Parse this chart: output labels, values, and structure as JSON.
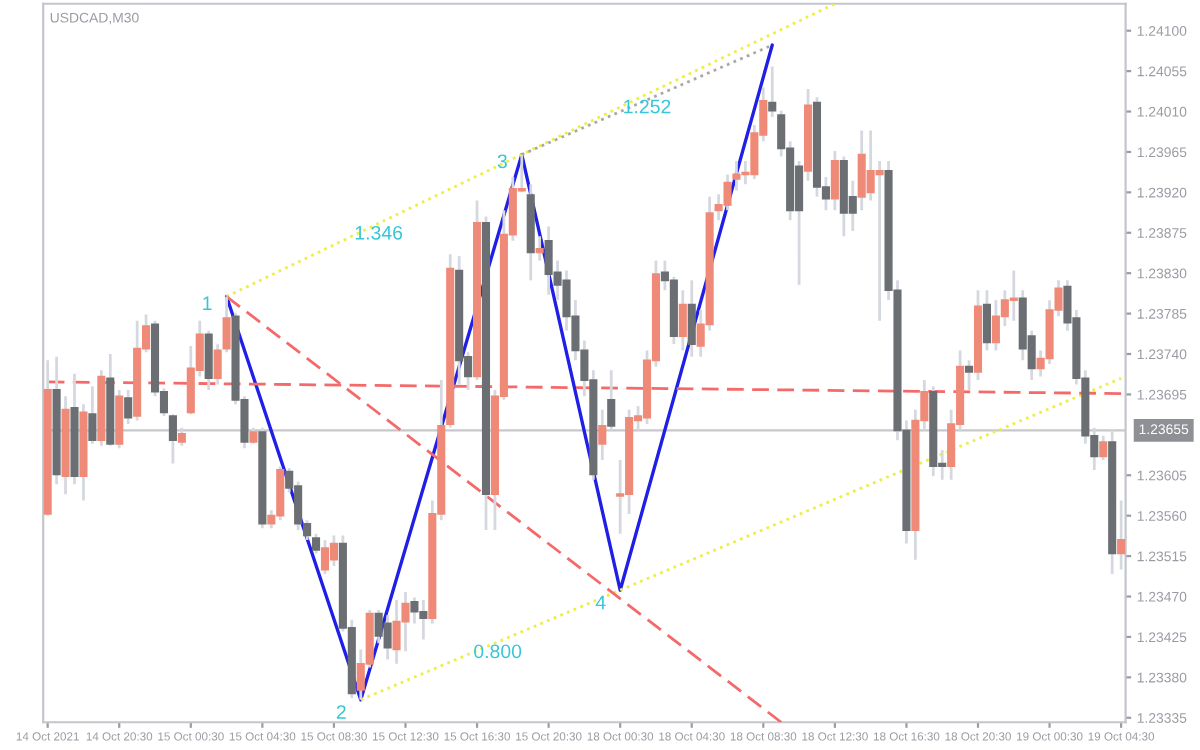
{
  "chart_data": {
    "type": "candlestick",
    "title": "USDCAD,M30",
    "categories": [
      "14 Oct 2021",
      null,
      null,
      null,
      null,
      null,
      null,
      null,
      "14 Oct 20:30",
      null,
      null,
      null,
      null,
      null,
      null,
      null,
      "15 Oct 00:30",
      null,
      null,
      null,
      null,
      null,
      null,
      null,
      "15 Oct 04:30",
      null,
      null,
      null,
      null,
      null,
      null,
      null,
      "15 Oct 08:30",
      null,
      null,
      null,
      null,
      null,
      null,
      null,
      "15 Oct 12:30",
      null,
      null,
      null,
      null,
      null,
      null,
      null,
      "15 Oct 16:30",
      null,
      null,
      null,
      null,
      null,
      null,
      null,
      "15 Oct 20:30",
      null,
      null,
      null,
      null,
      null,
      null,
      null,
      "18 Oct 00:30",
      null,
      null,
      null,
      null,
      null,
      null,
      null,
      "18 Oct 04:30",
      null,
      null,
      null,
      null,
      null,
      null,
      null,
      "18 Oct 08:30",
      null,
      null,
      null,
      null,
      null,
      null,
      null,
      "18 Oct 12:30",
      null,
      null,
      null,
      null,
      null,
      null,
      null,
      "18 Oct 16:30",
      null,
      null,
      null,
      null,
      null,
      null,
      null,
      "18 Oct 20:30",
      null,
      null,
      null,
      null,
      null,
      null,
      null,
      "19 Oct 00:30",
      null,
      null,
      null,
      null,
      null,
      null,
      null,
      "19 Oct 04:30"
    ],
    "ohlc": [
      [
        1.23562,
        1.23733,
        1.2356,
        1.237
      ],
      [
        1.237,
        1.23737,
        1.23595,
        1.23606
      ],
      [
        1.23604,
        1.23693,
        1.23584,
        1.23678
      ],
      [
        1.2368,
        1.23718,
        1.23595,
        1.23604
      ],
      [
        1.23604,
        1.23684,
        1.23577,
        1.23675
      ],
      [
        1.23673,
        1.23704,
        1.2364,
        1.23644
      ],
      [
        1.23644,
        1.23722,
        1.23638,
        1.23715
      ],
      [
        1.23713,
        1.2374,
        1.23638,
        1.2364
      ],
      [
        1.2364,
        1.237,
        1.23635,
        1.23693
      ],
      [
        1.23691,
        1.237,
        1.23662,
        1.23669
      ],
      [
        1.23671,
        1.23777,
        1.23666,
        1.23746
      ],
      [
        1.23746,
        1.23784,
        1.23742,
        1.23771
      ],
      [
        1.23773,
        1.23777,
        1.23693,
        1.23698
      ],
      [
        1.23698,
        1.23702,
        1.23671,
        1.23675
      ],
      [
        1.23671,
        1.23673,
        1.23618,
        1.23644
      ],
      [
        1.23642,
        1.23658,
        1.23638,
        1.23651
      ],
      [
        1.23675,
        1.23749,
        1.23673,
        1.23724
      ],
      [
        1.23722,
        1.23777,
        1.23715,
        1.23762
      ],
      [
        1.23762,
        1.23766,
        1.237,
        1.23713
      ],
      [
        1.23713,
        1.23751,
        1.23706,
        1.23744
      ],
      [
        1.23746,
        1.23804,
        1.23742,
        1.2378
      ],
      [
        1.23782,
        1.23786,
        1.23684,
        1.23689
      ],
      [
        1.23689,
        1.23693,
        1.23635,
        1.23642
      ],
      [
        1.23642,
        1.23658,
        1.2364,
        1.23653
      ],
      [
        1.23653,
        1.23658,
        1.23546,
        1.23551
      ],
      [
        1.23551,
        1.23566,
        1.23546,
        1.2356
      ],
      [
        1.2356,
        1.23615,
        1.23555,
        1.23611
      ],
      [
        1.23609,
        1.23613,
        1.23586,
        1.23591
      ],
      [
        1.23593,
        1.23598,
        1.23544,
        1.23551
      ],
      [
        1.23551,
        1.23555,
        1.23533,
        1.23538
      ],
      [
        1.23535,
        1.2354,
        1.23518,
        1.23522
      ],
      [
        1.235,
        1.23533,
        1.23495,
        1.23524
      ],
      [
        1.23511,
        1.23538,
        1.23504,
        1.23529
      ],
      [
        1.23529,
        1.23538,
        1.23431,
        1.23435
      ],
      [
        1.23435,
        1.23444,
        1.23357,
        1.23362
      ],
      [
        1.23366,
        1.23411,
        1.23355,
        1.23395
      ],
      [
        1.23395,
        1.23455,
        1.23391,
        1.23451
      ],
      [
        1.23451,
        1.23455,
        1.23418,
        1.23426
      ],
      [
        1.2344,
        1.23449,
        1.234,
        1.23413
      ],
      [
        1.23411,
        1.23466,
        1.23395,
        1.23442
      ],
      [
        1.23442,
        1.23475,
        1.23409,
        1.23462
      ],
      [
        1.23464,
        1.23469,
        1.2344,
        1.23453
      ],
      [
        1.23453,
        1.23466,
        1.23422,
        1.23446
      ],
      [
        1.23446,
        1.23577,
        1.2344,
        1.23562
      ],
      [
        1.23562,
        1.23711,
        1.23555,
        1.2366
      ],
      [
        1.23662,
        1.23851,
        1.23658,
        1.23835
      ],
      [
        1.23833,
        1.23849,
        1.23706,
        1.23733
      ],
      [
        1.23737,
        1.23742,
        1.237,
        1.23715
      ],
      [
        1.23715,
        1.23911,
        1.23711,
        1.23886
      ],
      [
        1.23886,
        1.23893,
        1.23544,
        1.23584
      ],
      [
        1.23584,
        1.237,
        1.23544,
        1.23693
      ],
      [
        1.23693,
        1.239,
        1.23689,
        1.23873
      ],
      [
        1.23873,
        1.23937,
        1.23866,
        1.23924
      ],
      [
        1.23922,
        1.23962,
        1.2392,
        1.23924
      ],
      [
        1.23917,
        1.23929,
        1.23822,
        1.23853
      ],
      [
        1.23853,
        1.23871,
        1.23844,
        1.23857
      ],
      [
        1.23866,
        1.23882,
        1.23806,
        1.23829
      ],
      [
        1.23831,
        1.23844,
        1.238,
        1.23817
      ],
      [
        1.23822,
        1.23833,
        1.23766,
        1.23782
      ],
      [
        1.23782,
        1.238,
        1.23733,
        1.23744
      ],
      [
        1.23744,
        1.23755,
        1.23693,
        1.23711
      ],
      [
        1.23711,
        1.23722,
        1.236,
        1.23606
      ],
      [
        1.2364,
        1.23678,
        1.23622,
        1.2366
      ],
      [
        1.23689,
        1.23722,
        1.23655,
        1.2366
      ],
      [
        1.23582,
        1.23622,
        1.2354,
        1.23584
      ],
      [
        1.23584,
        1.23678,
        1.23562,
        1.23669
      ],
      [
        1.23666,
        1.23682,
        1.23655,
        1.23671
      ],
      [
        1.23669,
        1.23744,
        1.23662,
        1.23733
      ],
      [
        1.23733,
        1.23844,
        1.23726,
        1.23829
      ],
      [
        1.23831,
        1.23844,
        1.23811,
        1.23822
      ],
      [
        1.23822,
        1.23826,
        1.23751,
        1.2376
      ],
      [
        1.2376,
        1.23811,
        1.23744,
        1.23795
      ],
      [
        1.23795,
        1.23822,
        1.23737,
        1.23751
      ],
      [
        1.23749,
        1.23789,
        1.23737,
        1.23773
      ],
      [
        1.23773,
        1.23915,
        1.23766,
        1.23897
      ],
      [
        1.239,
        1.23918,
        1.23889,
        1.23906
      ],
      [
        1.23906,
        1.2394,
        1.239,
        1.23931
      ],
      [
        1.23935,
        1.23955,
        1.23922,
        1.2394
      ],
      [
        1.2394,
        1.23955,
        1.23929,
        1.23942
      ],
      [
        1.2394,
        1.23995,
        1.23935,
        1.23986
      ],
      [
        1.23984,
        1.24037,
        1.23977,
        1.24022
      ],
      [
        1.2402,
        1.2406,
        1.24004,
        1.24011
      ],
      [
        1.24006,
        1.24011,
        1.2396,
        1.23969
      ],
      [
        1.23969,
        1.23977,
        1.23889,
        1.239
      ],
      [
        1.23949,
        1.23955,
        1.23817,
        1.239
      ],
      [
        1.23944,
        1.24035,
        1.23933,
        1.24017
      ],
      [
        1.2402,
        1.24026,
        1.23915,
        1.23926
      ],
      [
        1.23926,
        1.23937,
        1.239,
        1.23913
      ],
      [
        1.23913,
        1.23966,
        1.239,
        1.23955
      ],
      [
        1.23955,
        1.2396,
        1.23871,
        1.23897
      ],
      [
        1.23915,
        1.23933,
        1.23877,
        1.23897
      ],
      [
        1.23915,
        1.23989,
        1.239,
        1.23962
      ],
      [
        1.2392,
        1.23989,
        1.23911,
        1.23944
      ],
      [
        1.2394,
        1.23955,
        1.23777,
        1.23944
      ],
      [
        1.23944,
        1.23955,
        1.238,
        1.23811
      ],
      [
        1.23811,
        1.23822,
        1.23644,
        1.23655
      ],
      [
        1.23655,
        1.23666,
        1.23529,
        1.23544
      ],
      [
        1.23544,
        1.23678,
        1.23511,
        1.23666
      ],
      [
        1.23666,
        1.23711,
        1.23655,
        1.23698
      ],
      [
        1.23698,
        1.23704,
        1.23604,
        1.23615
      ],
      [
        1.23618,
        1.23633,
        1.236,
        1.23615
      ],
      [
        1.23615,
        1.23678,
        1.236,
        1.23662
      ],
      [
        1.23662,
        1.23744,
        1.23655,
        1.23726
      ],
      [
        1.23726,
        1.23733,
        1.237,
        1.2372
      ],
      [
        1.2372,
        1.23811,
        1.23711,
        1.23793
      ],
      [
        1.23795,
        1.23811,
        1.23744,
        1.23753
      ],
      [
        1.23753,
        1.238,
        1.23744,
        1.23782
      ],
      [
        1.23782,
        1.23811,
        1.23771,
        1.238
      ],
      [
        1.238,
        1.23833,
        1.23777,
        1.23802
      ],
      [
        1.23802,
        1.23811,
        1.23733,
        1.23746
      ],
      [
        1.2376,
        1.23766,
        1.23711,
        1.23724
      ],
      [
        1.23724,
        1.23744,
        1.23715,
        1.23735
      ],
      [
        1.23735,
        1.238,
        1.23729,
        1.23789
      ],
      [
        1.23789,
        1.23822,
        1.23782,
        1.23813
      ],
      [
        1.23815,
        1.23822,
        1.23766,
        1.23775
      ],
      [
        1.2378,
        1.23789,
        1.23706,
        1.23713
      ],
      [
        1.23713,
        1.23722,
        1.2364,
        1.23649
      ],
      [
        1.23649,
        1.23658,
        1.23611,
        1.23626
      ],
      [
        1.23626,
        1.23649,
        1.23622,
        1.23642
      ],
      [
        1.23642,
        1.23655,
        1.23495,
        1.23518
      ],
      [
        1.23518,
        1.23577,
        1.235,
        1.23533
      ]
    ],
    "colors": [
      "#ef8a79",
      "#6b6f73",
      "#ef8a79",
      "#6b6f73",
      "#ef8a79",
      "#6b6f73",
      "#ef8a79",
      "#6b6f73",
      "#ef8a79",
      "#6b6f73",
      "#ef8a79",
      "#ef8a79",
      "#6b6f73",
      "#6b6f73",
      "#6b6f73",
      "#ef8a79",
      "#ef8a79",
      "#ef8a79",
      "#6b6f73",
      "#ef8a79",
      "#ef8a79",
      "#6b6f73",
      "#6b6f73",
      "#ef8a79",
      "#6b6f73",
      "#ef8a79",
      "#ef8a79",
      "#6b6f73",
      "#6b6f73",
      "#6b6f73",
      "#6b6f73",
      "#ef8a79",
      "#ef8a79",
      "#6b6f73",
      "#6b6f73",
      "#ef8a79",
      "#ef8a79",
      "#6b6f73",
      "#6b6f73",
      "#ef8a79",
      "#ef8a79",
      "#6b6f73",
      "#6b6f73",
      "#ef8a79",
      "#ef8a79",
      "#ef8a79",
      "#6b6f73",
      "#6b6f73",
      "#ef8a79",
      "#6b6f73",
      "#ef8a79",
      "#ef8a79",
      "#ef8a79",
      "#ef8a79",
      "#6b6f73",
      "#ef8a79",
      "#6b6f73",
      "#6b6f73",
      "#6b6f73",
      "#6b6f73",
      "#6b6f73",
      "#6b6f73",
      "#ef8a79",
      "#6b6f73",
      "#ef8a79",
      "#ef8a79",
      "#ef8a79",
      "#ef8a79",
      "#ef8a79",
      "#6b6f73",
      "#6b6f73",
      "#ef8a79",
      "#6b6f73",
      "#ef8a79",
      "#ef8a79",
      "#ef8a79",
      "#ef8a79",
      "#ef8a79",
      "#ef8a79",
      "#ef8a79",
      "#ef8a79",
      "#6b6f73",
      "#6b6f73",
      "#6b6f73",
      "#6b6f73",
      "#ef8a79",
      "#6b6f73",
      "#6b6f73",
      "#ef8a79",
      "#6b6f73",
      "#6b6f73",
      "#ef8a79",
      "#ef8a79",
      "#ef8a79",
      "#6b6f73",
      "#6b6f73",
      "#6b6f73",
      "#ef8a79",
      "#ef8a79",
      "#6b6f73",
      "#6b6f73",
      "#ef8a79",
      "#ef8a79",
      "#6b6f73",
      "#ef8a79",
      "#6b6f73",
      "#ef8a79",
      "#ef8a79",
      "#ef8a79",
      "#6b6f73",
      "#6b6f73",
      "#ef8a79",
      "#ef8a79",
      "#ef8a79",
      "#6b6f73",
      "#6b6f73",
      "#6b6f73",
      "#6b6f73",
      "#ef8a79",
      "#6b6f73",
      "#ef8a79"
    ],
    "series": [
      {
        "type": "line",
        "color": "#1f1fe6",
        "line_style": "solid",
        "values": [
          null,
          null,
          null,
          null,
          null,
          null,
          null,
          null,
          null,
          null,
          null,
          null,
          null,
          null,
          null,
          null,
          null,
          null,
          null,
          null,
          1.23804,
          null,
          null,
          null,
          null,
          null,
          null,
          null,
          null,
          null,
          null,
          null,
          null,
          null,
          null,
          1.23355,
          null,
          null,
          null,
          null,
          null,
          null,
          null,
          null,
          null,
          null,
          null,
          null,
          null,
          null,
          null,
          null,
          null,
          1.23962,
          null,
          null,
          null,
          null,
          null,
          null,
          null,
          null,
          null,
          null,
          1.23477,
          null,
          null,
          null,
          null,
          null,
          null,
          null,
          null,
          null,
          null,
          null,
          null,
          null,
          null,
          null,
          null,
          1.24084,
          null,
          null,
          null,
          null,
          null,
          null,
          null,
          null,
          null,
          null,
          null,
          null,
          null,
          null,
          null,
          null,
          null,
          null,
          null,
          null,
          null,
          null,
          null,
          null,
          null,
          null,
          null,
          null,
          null,
          null,
          null,
          null,
          null,
          null,
          null,
          null,
          null,
          null,
          null
        ]
      },
      {
        "type": "line",
        "color": "#eeee44",
        "line_style": "dotted",
        "values": [
          null,
          null,
          null,
          null,
          null,
          null,
          null,
          null,
          null,
          null,
          null,
          null,
          null,
          null,
          null,
          null,
          null,
          null,
          null,
          null,
          1.23804,
          null,
          null,
          null,
          null,
          null,
          null,
          null,
          null,
          null,
          null,
          null,
          null,
          null,
          null,
          null,
          null,
          null,
          null,
          null,
          null,
          null,
          null,
          null,
          null,
          null,
          null,
          null,
          null,
          null,
          null,
          null,
          null,
          null,
          null,
          null,
          null,
          null,
          null,
          null,
          null,
          null,
          null,
          null,
          null,
          null,
          null,
          null,
          null,
          null,
          null,
          null,
          null,
          null,
          null,
          null,
          null,
          null,
          null,
          null,
          null,
          null,
          null,
          null,
          null,
          null,
          null,
          null,
          1.2413,
          null,
          null,
          null,
          null,
          null,
          null,
          null,
          null,
          null,
          null,
          null,
          null,
          null,
          null,
          null,
          null,
          null,
          null,
          null,
          null,
          null,
          null,
          null,
          null,
          null,
          null,
          null,
          null,
          null,
          null,
          null,
          null
        ]
      },
      {
        "type": "line",
        "color": "#a8a8a8",
        "line_style": "dotted",
        "values": [
          null,
          null,
          null,
          null,
          null,
          null,
          null,
          null,
          null,
          null,
          null,
          null,
          null,
          null,
          null,
          null,
          null,
          null,
          null,
          null,
          null,
          null,
          null,
          null,
          null,
          null,
          null,
          null,
          null,
          null,
          null,
          null,
          null,
          null,
          null,
          null,
          null,
          null,
          null,
          null,
          null,
          null,
          null,
          null,
          null,
          null,
          null,
          null,
          null,
          null,
          null,
          null,
          null,
          1.23962,
          null,
          null,
          null,
          null,
          null,
          null,
          null,
          null,
          null,
          null,
          null,
          null,
          null,
          null,
          null,
          null,
          null,
          null,
          null,
          null,
          null,
          null,
          null,
          null,
          null,
          null,
          null,
          1.24084,
          null,
          null,
          null,
          null,
          null,
          null,
          null,
          null,
          null,
          null,
          null,
          null,
          null,
          null,
          null,
          null,
          null,
          null,
          null,
          null,
          null,
          null,
          null,
          null,
          null,
          null,
          null,
          null,
          null,
          null,
          null,
          null,
          null,
          null,
          null,
          null,
          null,
          null,
          null
        ]
      },
      {
        "type": "line",
        "color": "#eeee44",
        "line_style": "dotted",
        "values": [
          null,
          null,
          null,
          null,
          null,
          null,
          null,
          null,
          null,
          null,
          null,
          null,
          null,
          null,
          null,
          null,
          null,
          null,
          null,
          null,
          null,
          null,
          null,
          null,
          null,
          null,
          null,
          null,
          null,
          null,
          null,
          null,
          null,
          null,
          null,
          1.23355,
          null,
          null,
          null,
          null,
          null,
          null,
          null,
          null,
          null,
          null,
          null,
          null,
          null,
          null,
          null,
          null,
          null,
          null,
          null,
          null,
          null,
          null,
          null,
          null,
          null,
          null,
          null,
          null,
          null,
          null,
          null,
          null,
          null,
          null,
          null,
          null,
          null,
          null,
          null,
          null,
          null,
          null,
          null,
          null,
          null,
          null,
          null,
          null,
          null,
          null,
          null,
          null,
          null,
          null,
          null,
          null,
          null,
          null,
          null,
          null,
          null,
          null,
          null,
          null,
          null,
          null,
          null,
          null,
          null,
          null,
          null,
          null,
          null,
          null,
          null,
          null,
          null,
          null,
          null,
          null,
          null,
          null,
          null,
          null,
          1.23713
        ]
      },
      {
        "type": "line",
        "color": "#f46a6a",
        "line_style": "dashed",
        "values": [
          null,
          null,
          null,
          null,
          null,
          null,
          null,
          null,
          null,
          null,
          null,
          null,
          null,
          null,
          null,
          null,
          null,
          null,
          null,
          null,
          1.23804,
          null,
          null,
          null,
          null,
          null,
          null,
          null,
          null,
          null,
          null,
          null,
          null,
          null,
          null,
          null,
          null,
          null,
          null,
          null,
          null,
          null,
          null,
          null,
          null,
          null,
          null,
          null,
          null,
          null,
          null,
          null,
          null,
          null,
          null,
          null,
          null,
          null,
          null,
          null,
          null,
          null,
          null,
          null,
          null,
          null,
          null,
          null,
          null,
          null,
          null,
          null,
          null,
          null,
          null,
          null,
          null,
          null,
          null,
          null,
          null,
          null,
          1.2333,
          null,
          null,
          null,
          null,
          null,
          null,
          null,
          null,
          null,
          null,
          null,
          null,
          null,
          null,
          null,
          null,
          null,
          null,
          null,
          null,
          null,
          null,
          null,
          null,
          null,
          null,
          null,
          null,
          null,
          null,
          null,
          null,
          null,
          null,
          null,
          null,
          null,
          null
        ]
      },
      {
        "type": "line",
        "color": "#f46a6a",
        "line_style": "dashed",
        "values": [
          1.23709,
          null,
          null,
          null,
          null,
          null,
          null,
          null,
          null,
          null,
          null,
          null,
          null,
          null,
          null,
          null,
          null,
          null,
          null,
          null,
          null,
          null,
          null,
          null,
          null,
          null,
          null,
          null,
          null,
          null,
          null,
          null,
          null,
          null,
          null,
          null,
          null,
          null,
          null,
          null,
          null,
          null,
          null,
          null,
          null,
          null,
          null,
          null,
          null,
          null,
          null,
          null,
          null,
          null,
          null,
          null,
          null,
          null,
          null,
          null,
          null,
          null,
          null,
          null,
          null,
          null,
          null,
          null,
          null,
          null,
          null,
          null,
          null,
          null,
          null,
          null,
          null,
          null,
          null,
          null,
          null,
          null,
          null,
          null,
          null,
          null,
          null,
          null,
          null,
          null,
          null,
          null,
          null,
          null,
          null,
          null,
          null,
          null,
          null,
          null,
          null,
          null,
          null,
          null,
          null,
          null,
          null,
          null,
          null,
          null,
          null,
          null,
          null,
          null,
          null,
          null,
          null,
          null,
          null,
          null,
          1.23696
        ]
      }
    ],
    "annotations": [
      "1",
      "2",
      "3",
      "4",
      "1.346",
      "1.252",
      "0.800"
    ],
    "ref_lines": [
      {
        "axis": "y",
        "value": 1.23655,
        "label": "1.23655",
        "color": "#c8c8cc"
      }
    ],
    "ylim": [
      1.2333,
      1.2413
    ],
    "yticks": [
      {
        "value": 1.241,
        "label": "1.24100"
      },
      {
        "value": 1.24055,
        "label": "1.24055"
      },
      {
        "value": 1.2401,
        "label": "1.24010"
      },
      {
        "value": 1.23965,
        "label": "1.23965"
      },
      {
        "value": 1.2392,
        "label": "1.23920"
      },
      {
        "value": 1.23875,
        "label": "1.23875"
      },
      {
        "value": 1.2383,
        "label": "1.23830"
      },
      {
        "value": 1.23785,
        "label": "1.23785"
      },
      {
        "value": 1.2374,
        "label": "1.23740"
      },
      {
        "value": 1.23695,
        "label": "1.23695"
      },
      {
        "value": 1.23605,
        "label": "1.23605"
      },
      {
        "value": 1.2356,
        "label": "1.23560"
      },
      {
        "value": 1.23515,
        "label": "1.23515"
      },
      {
        "value": 1.2347,
        "label": "1.23470"
      },
      {
        "value": 1.23425,
        "label": "1.23425"
      },
      {
        "value": 1.2338,
        "label": "1.23380"
      },
      {
        "value": 1.23335,
        "label": "1.23335"
      }
    ]
  }
}
